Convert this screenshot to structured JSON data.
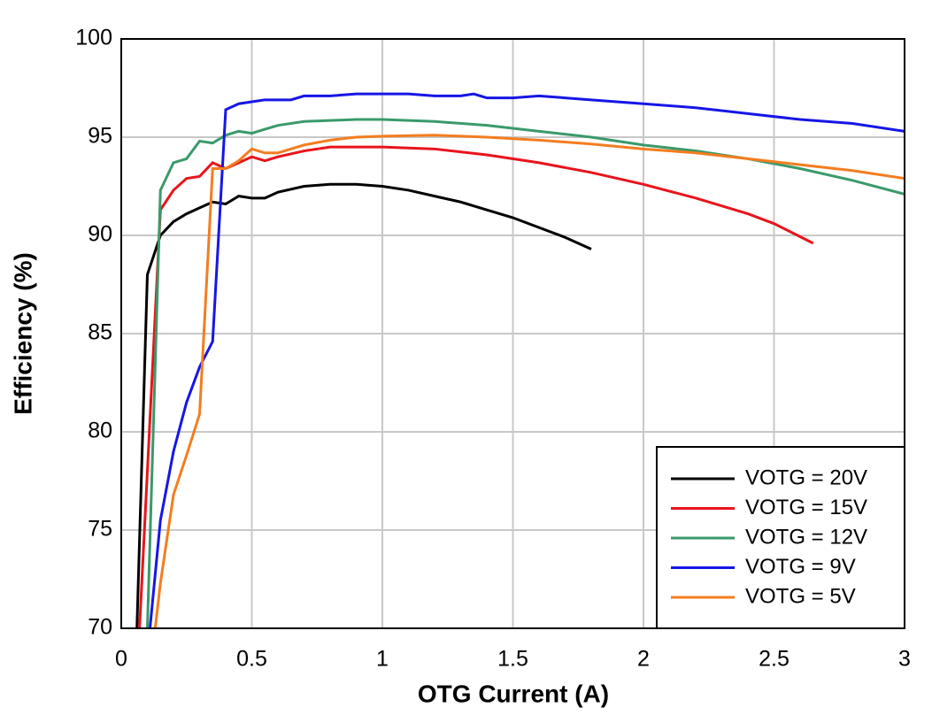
{
  "chart_data": {
    "type": "line",
    "xlabel": "OTG Current (A)",
    "ylabel": "Efficiency (%)",
    "xlim": [
      0,
      3
    ],
    "xticks": [
      0,
      0.5,
      1,
      1.5,
      2,
      2.5,
      3
    ],
    "ylim": [
      70,
      100
    ],
    "yticks": [
      70,
      75,
      80,
      85,
      90,
      95,
      100
    ],
    "grid": true,
    "legend": "lower right",
    "series": [
      {
        "name": "VOTG = 20V",
        "color": "#000000",
        "x": [
          0.06,
          0.1,
          0.15,
          0.2,
          0.25,
          0.3,
          0.35,
          0.4,
          0.45,
          0.5,
          0.55,
          0.6,
          0.7,
          0.8,
          0.9,
          1.0,
          1.1,
          1.2,
          1.3,
          1.4,
          1.5,
          1.6,
          1.7,
          1.8
        ],
        "values": [
          70,
          88,
          90,
          90.7,
          91.1,
          91.4,
          91.7,
          91.6,
          92,
          91.9,
          91.9,
          92.2,
          92.5,
          92.6,
          92.6,
          92.5,
          92.3,
          92.0,
          91.7,
          91.3,
          90.9,
          90.4,
          89.9,
          89.3
        ]
      },
      {
        "name": "VOTG = 15V",
        "color": "#e8141c",
        "x": [
          0.07,
          0.15,
          0.2,
          0.25,
          0.3,
          0.35,
          0.4,
          0.45,
          0.5,
          0.55,
          0.6,
          0.7,
          0.8,
          1.0,
          1.2,
          1.4,
          1.6,
          1.8,
          2.0,
          2.2,
          2.4,
          2.5,
          2.65
        ],
        "values": [
          70,
          91.3,
          92.3,
          92.9,
          93.0,
          93.7,
          93.4,
          93.7,
          94.0,
          93.8,
          94.0,
          94.3,
          94.5,
          94.5,
          94.4,
          94.1,
          93.7,
          93.2,
          92.6,
          91.9,
          91.1,
          90.6,
          89.6
        ]
      },
      {
        "name": "VOTG = 12V",
        "color": "#3a9a6a",
        "x": [
          0.1,
          0.15,
          0.2,
          0.25,
          0.3,
          0.35,
          0.4,
          0.45,
          0.5,
          0.55,
          0.6,
          0.7,
          0.8,
          0.9,
          1.0,
          1.2,
          1.4,
          1.6,
          1.8,
          2.0,
          2.2,
          2.4,
          2.6,
          2.8,
          3.0
        ],
        "values": [
          70,
          92.3,
          93.7,
          93.9,
          94.8,
          94.7,
          95.1,
          95.3,
          95.2,
          95.4,
          95.6,
          95.8,
          95.85,
          95.9,
          95.9,
          95.8,
          95.6,
          95.3,
          95.0,
          94.6,
          94.3,
          93.9,
          93.4,
          92.8,
          92.1
        ]
      },
      {
        "name": "VOTG = 9V",
        "color": "#1616e6",
        "x": [
          0.11,
          0.15,
          0.2,
          0.25,
          0.3,
          0.35,
          0.4,
          0.45,
          0.5,
          0.55,
          0.6,
          0.65,
          0.7,
          0.8,
          0.9,
          1.0,
          1.1,
          1.2,
          1.3,
          1.35,
          1.4,
          1.5,
          1.6,
          1.8,
          2.0,
          2.2,
          2.4,
          2.6,
          2.8,
          3.0
        ],
        "values": [
          70,
          75.5,
          79,
          81.5,
          83.3,
          84.6,
          96.4,
          96.7,
          96.8,
          96.9,
          96.9,
          96.9,
          97.1,
          97.1,
          97.2,
          97.2,
          97.2,
          97.1,
          97.1,
          97.2,
          97.0,
          97.0,
          97.1,
          96.9,
          96.7,
          96.5,
          96.2,
          95.9,
          95.7,
          95.3
        ]
      },
      {
        "name": "VOTG = 5V",
        "color": "#f47d1f",
        "x": [
          0.13,
          0.15,
          0.2,
          0.25,
          0.3,
          0.35,
          0.4,
          0.45,
          0.5,
          0.55,
          0.6,
          0.65,
          0.7,
          0.8,
          0.9,
          1.0,
          1.2,
          1.4,
          1.6,
          1.8,
          2.0,
          2.2,
          2.4,
          2.6,
          2.8,
          3.0
        ],
        "values": [
          70,
          72.3,
          76.8,
          78.8,
          80.9,
          93.4,
          93.4,
          93.8,
          94.4,
          94.2,
          94.2,
          94.4,
          94.6,
          94.85,
          95.0,
          95.05,
          95.1,
          95.0,
          94.85,
          94.65,
          94.4,
          94.2,
          93.9,
          93.6,
          93.3,
          92.9
        ]
      }
    ]
  }
}
